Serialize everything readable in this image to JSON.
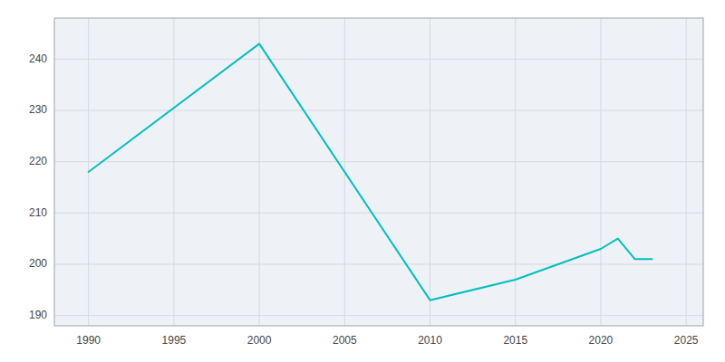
{
  "chart_data": {
    "type": "line",
    "x": [
      1990,
      2000,
      2010,
      2015,
      2020,
      2021,
      2022,
      2023
    ],
    "values": [
      218,
      243,
      193,
      197,
      203,
      205,
      201,
      201
    ],
    "color": "#00BFBF",
    "xlim": [
      1988,
      2026
    ],
    "ylim": [
      188,
      248
    ],
    "xticks": [
      1990,
      1995,
      2000,
      2005,
      2010,
      2015,
      2020,
      2025
    ],
    "yticks": [
      190,
      200,
      210,
      220,
      230,
      240
    ],
    "grid": true
  }
}
